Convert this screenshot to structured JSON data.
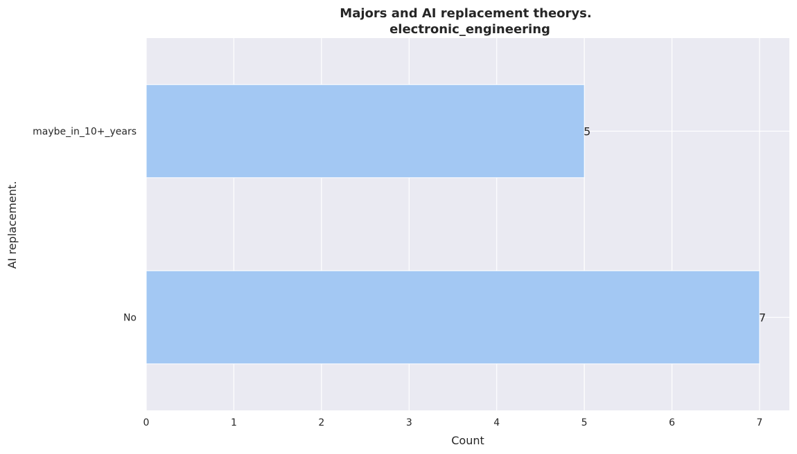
{
  "chart_data": {
    "type": "bar",
    "orientation": "horizontal",
    "title": "Majors and AI replacement theorys.",
    "subtitle": "electronic_engineering",
    "categories": [
      "maybe_in_10+_years",
      "No"
    ],
    "values": [
      5,
      7
    ],
    "data_labels": [
      "5",
      "7"
    ],
    "xlabel": "Count",
    "ylabel": "AI replacement.",
    "xlim": [
      0,
      7.34
    ],
    "x_ticks": [
      "0",
      "1",
      "2",
      "3",
      "4",
      "5",
      "6",
      "7"
    ],
    "grid": true,
    "legend": "none"
  },
  "colors": {
    "bar": "#a3c8f3",
    "plot_background": "#eaeaf2",
    "grid": "#ffffff",
    "text": "#262626"
  }
}
